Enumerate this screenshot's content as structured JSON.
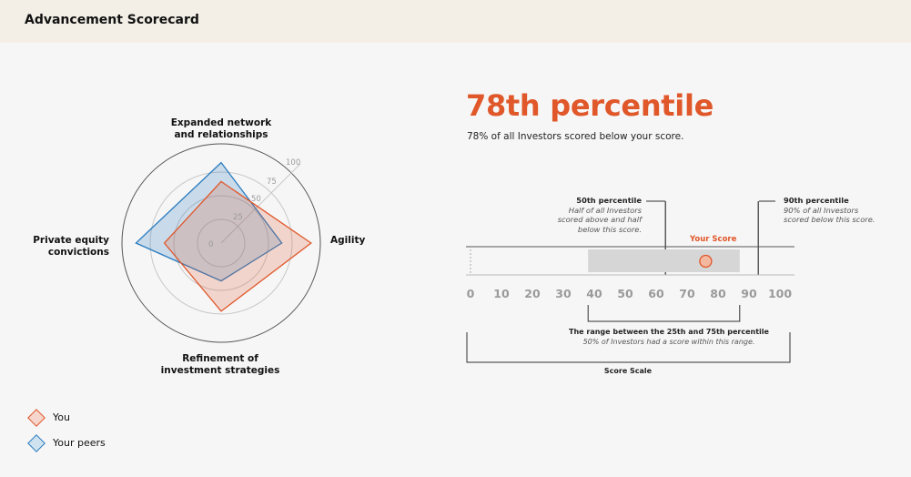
{
  "header": {
    "title": "Advancement Scorecard"
  },
  "radar": {
    "axes": [
      "Expanded network and relationships",
      "Agility",
      "Refinement of investment strategies",
      "Private equity convictions"
    ],
    "axis_lines": [
      [
        "Expanded network",
        "and relationships"
      ],
      [
        "Agility"
      ],
      [
        "Refinement of",
        "investment strategies"
      ],
      [
        "Private equity",
        "convictions"
      ]
    ],
    "ring_labels": [
      "0",
      "25",
      "50",
      "75",
      "100"
    ],
    "max": 100
  },
  "chart_data": {
    "type": "radar",
    "categories": [
      "Expanded network and relationships",
      "Agility",
      "Refinement of investment strategies",
      "Private equity convictions"
    ],
    "ylim": [
      0,
      100
    ],
    "series": [
      {
        "name": "You",
        "values": [
          65,
          95,
          72,
          60
        ],
        "color": "#e0572a"
      },
      {
        "name": "Your peers",
        "values": [
          85,
          64,
          40,
          90
        ],
        "color": "#2a7bbf"
      }
    ]
  },
  "legend": [
    {
      "label": "You",
      "color": "#e0572a",
      "fill": "#f6d6cc"
    },
    {
      "label": "Your peers",
      "color": "#2a7bbf",
      "fill": "#cfe2ef"
    }
  ],
  "percentile": {
    "headline": "78th percentile",
    "description": "78% of all Investors scored below your score.",
    "value": 78
  },
  "score": {
    "your_score_label": "Your Score",
    "your_score": 76,
    "range_25": 38,
    "range_75": 87,
    "p50": 63,
    "p90": 93,
    "ticks": [
      "0",
      "10",
      "20",
      "30",
      "40",
      "50",
      "60",
      "70",
      "80",
      "90",
      "100"
    ],
    "p50_title": "50th percentile",
    "p50_text": [
      "Half of all Investors",
      "scored above and half",
      "below this score."
    ],
    "p90_title": "90th percentile",
    "p90_text": [
      "90% of all Investors",
      "scored below this score."
    ],
    "range_title": "The range between the 25th and 75th percentile",
    "range_text": "50% of Investors had a score within this range.",
    "scale_label": "Score Scale"
  },
  "colors": {
    "accent": "#e0572a",
    "peer": "#2a7bbf",
    "header_bg": "#f3efe7",
    "range_fill": "#d6d6d6"
  }
}
